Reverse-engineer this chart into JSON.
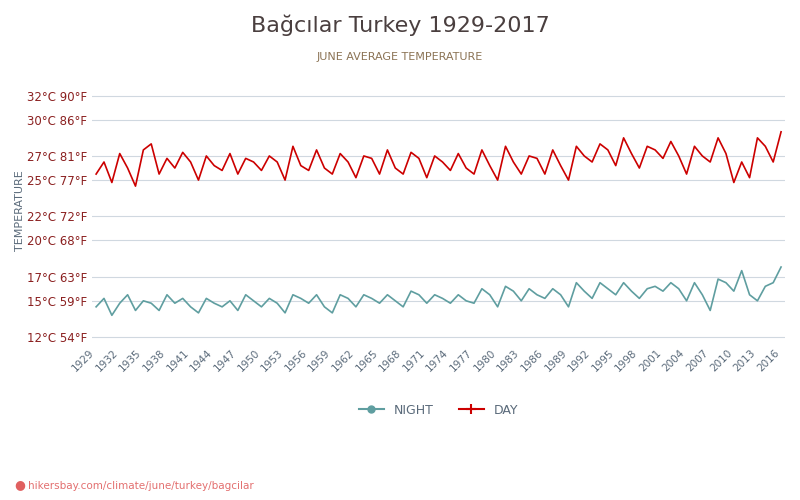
{
  "title": "Bağcılar Turkey 1929-2017",
  "subtitle": "JUNE AVERAGE TEMPERATURE",
  "ylabel": "TEMPERATURE",
  "watermark": "hikersbay.com/climate/june/turkey/bagcilar",
  "x_start": 1929,
  "x_end": 2016,
  "yticks_c": [
    12,
    15,
    17,
    20,
    22,
    25,
    27,
    30,
    32
  ],
  "yticks_f": [
    54,
    59,
    63,
    68,
    72,
    77,
    81,
    86,
    90
  ],
  "xticks": [
    1929,
    1932,
    1935,
    1938,
    1941,
    1944,
    1947,
    1950,
    1953,
    1956,
    1959,
    1962,
    1965,
    1968,
    1971,
    1974,
    1977,
    1980,
    1983,
    1986,
    1989,
    1992,
    1995,
    1998,
    2001,
    2004,
    2007,
    2010,
    2013,
    2016
  ],
  "day_color": "#cc0000",
  "night_color": "#5f9ea0",
  "title_color": "#4a3f3f",
  "subtitle_color": "#8b7355",
  "axis_label_color": "#5a6a7a",
  "tick_color": "#8b2020",
  "grid_color": "#d0d8e0",
  "background_color": "#ffffff",
  "day_data": [
    25.5,
    26.5,
    24.8,
    27.2,
    26.0,
    24.5,
    27.5,
    28.0,
    25.5,
    26.8,
    26.0,
    27.3,
    26.5,
    25.0,
    27.0,
    26.2,
    25.8,
    27.2,
    25.5,
    26.8,
    26.5,
    25.8,
    27.0,
    26.5,
    25.0,
    27.8,
    26.2,
    25.8,
    27.5,
    26.0,
    25.5,
    27.2,
    26.5,
    25.2,
    27.0,
    26.8,
    25.5,
    27.5,
    26.0,
    25.5,
    27.3,
    26.8,
    25.2,
    27.0,
    26.5,
    25.8,
    27.2,
    26.0,
    25.5,
    27.5,
    26.2,
    25.0,
    27.8,
    26.5,
    25.5,
    27.0,
    26.8,
    25.5,
    27.5,
    26.2,
    25.0,
    27.8,
    27.0,
    26.5,
    28.0,
    27.5,
    26.2,
    28.5,
    27.2,
    26.0,
    27.8,
    27.5,
    26.8,
    28.2,
    27.0,
    25.5,
    27.8,
    27.0,
    26.5,
    28.5,
    27.2,
    24.8,
    26.5,
    25.2,
    28.5,
    27.8,
    26.5,
    29.0
  ],
  "night_data": [
    14.5,
    15.2,
    13.8,
    14.8,
    15.5,
    14.2,
    15.0,
    14.8,
    14.2,
    15.5,
    14.8,
    15.2,
    14.5,
    14.0,
    15.2,
    14.8,
    14.5,
    15.0,
    14.2,
    15.5,
    15.0,
    14.5,
    15.2,
    14.8,
    14.0,
    15.5,
    15.2,
    14.8,
    15.5,
    14.5,
    14.0,
    15.5,
    15.2,
    14.5,
    15.5,
    15.2,
    14.8,
    15.5,
    15.0,
    14.5,
    15.8,
    15.5,
    14.8,
    15.5,
    15.2,
    14.8,
    15.5,
    15.0,
    14.8,
    16.0,
    15.5,
    14.5,
    16.2,
    15.8,
    15.0,
    16.0,
    15.5,
    15.2,
    16.0,
    15.5,
    14.5,
    16.5,
    15.8,
    15.2,
    16.5,
    16.0,
    15.5,
    16.5,
    15.8,
    15.2,
    16.0,
    16.2,
    15.8,
    16.5,
    16.0,
    15.0,
    16.5,
    15.5,
    14.2,
    16.8,
    16.5,
    15.8,
    17.5,
    15.5,
    15.0,
    16.2,
    16.5,
    17.8
  ]
}
